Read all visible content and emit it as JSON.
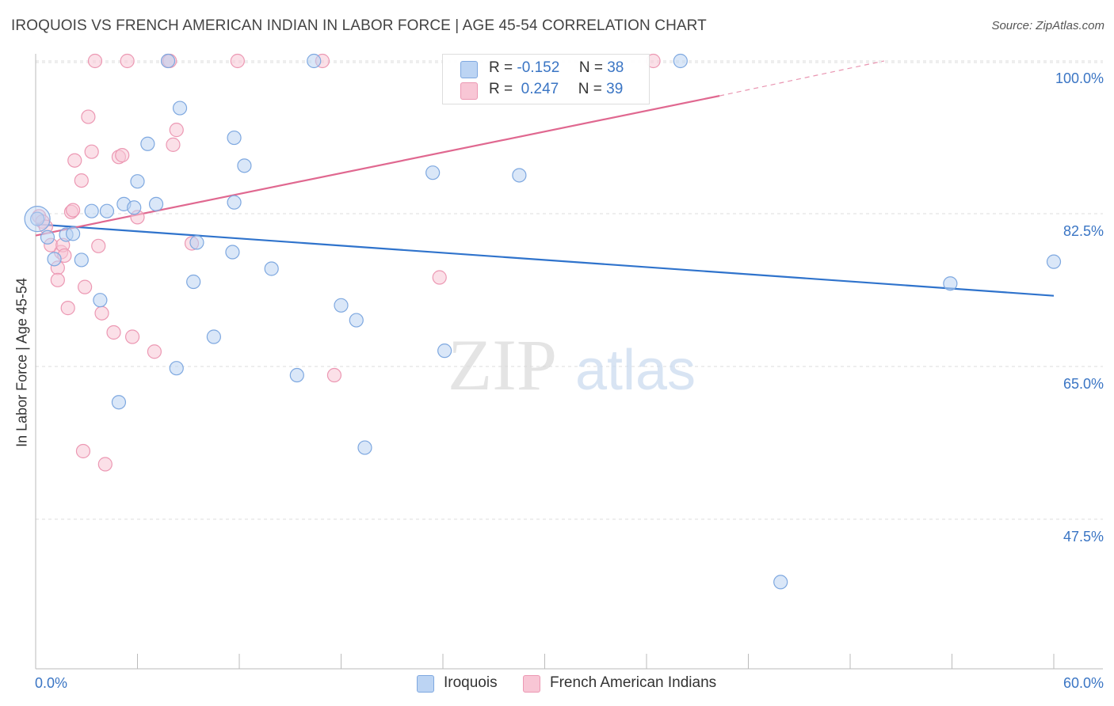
{
  "title": "IROQUOIS VS FRENCH AMERICAN INDIAN IN LABOR FORCE | AGE 45-54 CORRELATION CHART",
  "source": "Source: ZipAtlas.com",
  "watermark": {
    "zip": "ZIP",
    "atlas": "atlas"
  },
  "legend": {
    "rows": [
      {
        "r_label": "R =",
        "r_value": "-0.152",
        "n_label": "N =",
        "n_value": "38"
      },
      {
        "r_label": "R =",
        "r_value": " 0.247",
        "n_label": "N =",
        "n_value": "39"
      }
    ]
  },
  "colors": {
    "iroquois_fill": "#bcd4f3",
    "iroquois_stroke": "#7ea8e0",
    "iroquois_line": "#2f73cc",
    "french_fill": "#f8c6d5",
    "french_stroke": "#ec98b3",
    "french_line": "#e06890",
    "axis_label": "#3a75c4",
    "grid": "#dddddd"
  },
  "chart_data": {
    "type": "scatter",
    "title": "IROQUOIS VS FRENCH AMERICAN INDIAN IN LABOR FORCE | AGE 45-54 CORRELATION CHART",
    "xlabel": "",
    "ylabel": "In Labor Force | Age 45-54",
    "xlim": [
      0,
      60
    ],
    "ylim": [
      31,
      102
    ],
    "x_tick_labels": [
      "0.0%",
      "60.0%"
    ],
    "y_ticks": [
      47.5,
      65.0,
      82.5,
      100.0
    ],
    "y_tick_labels": [
      "47.5%",
      "65.0%",
      "82.5%",
      "100.0%"
    ],
    "grid": true,
    "legend_position": "top-center",
    "series": [
      {
        "name": "Iroquois",
        "r": -0.152,
        "n": 38,
        "trend": {
          "x": [
            0,
            60
          ],
          "y": [
            81.3,
            73.1
          ]
        },
        "points": [
          [
            0.1,
            81.9
          ],
          [
            0.7,
            79.8
          ],
          [
            1.8,
            80.1
          ],
          [
            1.1,
            77.3
          ],
          [
            2.7,
            77.2
          ],
          [
            3.3,
            82.8
          ],
          [
            4.2,
            82.8
          ],
          [
            5.2,
            83.6
          ],
          [
            5.8,
            83.2
          ],
          [
            6.0,
            86.2
          ],
          [
            6.6,
            90.5
          ],
          [
            7.1,
            83.6
          ],
          [
            7.8,
            100.0
          ],
          [
            8.5,
            94.6
          ],
          [
            9.5,
            79.2
          ],
          [
            11.6,
            78.1
          ],
          [
            11.7,
            91.2
          ],
          [
            12.3,
            88.0
          ],
          [
            11.7,
            83.8
          ],
          [
            13.9,
            76.2
          ],
          [
            3.8,
            72.6
          ],
          [
            9.3,
            74.7
          ],
          [
            10.5,
            68.4
          ],
          [
            8.3,
            64.8
          ],
          [
            15.4,
            64.0
          ],
          [
            18.9,
            70.3
          ],
          [
            19.4,
            55.7
          ],
          [
            24.1,
            66.8
          ],
          [
            4.9,
            60.9
          ],
          [
            16.4,
            100.0
          ],
          [
            23.4,
            87.2
          ],
          [
            28.5,
            86.9
          ],
          [
            38.0,
            100.0
          ],
          [
            53.9,
            74.5
          ],
          [
            60.0,
            77.0
          ],
          [
            43.9,
            40.3
          ],
          [
            18.0,
            72.0
          ],
          [
            2.2,
            80.2
          ]
        ]
      },
      {
        "name": "French American Indians",
        "r": 0.247,
        "n": 39,
        "trend": {
          "x": [
            0,
            40.3
          ],
          "y": [
            80.0,
            96.0
          ]
        },
        "trend_dashed": {
          "x": [
            40.3,
            50.0
          ],
          "y": [
            96.0,
            100.0
          ]
        },
        "points": [
          [
            0.2,
            82.2
          ],
          [
            0.4,
            81.6
          ],
          [
            0.6,
            81.0
          ],
          [
            0.9,
            78.9
          ],
          [
            1.3,
            76.3
          ],
          [
            1.3,
            74.9
          ],
          [
            1.5,
            78.1
          ],
          [
            1.6,
            78.9
          ],
          [
            1.7,
            77.7
          ],
          [
            1.9,
            71.7
          ],
          [
            2.1,
            82.7
          ],
          [
            2.2,
            82.9
          ],
          [
            2.3,
            88.6
          ],
          [
            2.7,
            86.3
          ],
          [
            2.8,
            55.3
          ],
          [
            2.9,
            74.1
          ],
          [
            3.1,
            93.6
          ],
          [
            3.3,
            89.6
          ],
          [
            3.7,
            78.8
          ],
          [
            3.9,
            71.1
          ],
          [
            4.1,
            53.8
          ],
          [
            4.6,
            68.9
          ],
          [
            4.9,
            89.0
          ],
          [
            5.1,
            89.2
          ],
          [
            5.7,
            68.4
          ],
          [
            6.0,
            82.1
          ],
          [
            7.0,
            66.7
          ],
          [
            7.8,
            100.0
          ],
          [
            7.9,
            100.0
          ],
          [
            8.1,
            90.4
          ],
          [
            8.3,
            92.1
          ],
          [
            9.2,
            79.1
          ],
          [
            3.5,
            100.0
          ],
          [
            5.4,
            100.0
          ],
          [
            11.9,
            100.0
          ],
          [
            16.9,
            100.0
          ],
          [
            17.6,
            64.0
          ],
          [
            23.8,
            75.2
          ],
          [
            36.4,
            100.0
          ]
        ]
      }
    ]
  }
}
